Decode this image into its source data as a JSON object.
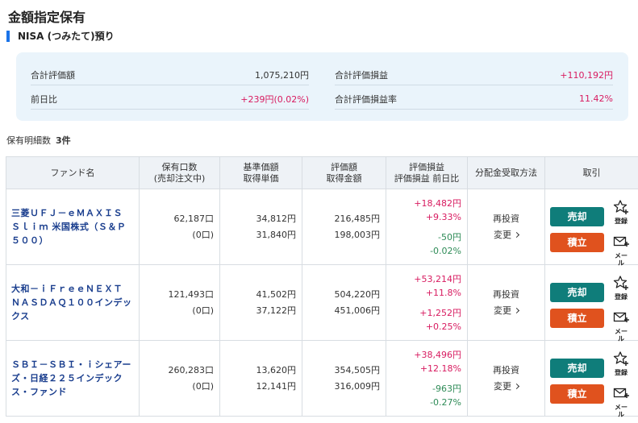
{
  "page": {
    "title": "金額指定保有",
    "section": "NISA (つみたて)預り"
  },
  "summary": {
    "total_value_label": "合計評価額",
    "total_value": "1,075,210円",
    "total_pl_label": "合計評価損益",
    "total_pl": "+110,192円",
    "day_change_label": "前日比",
    "day_change": "+239円(0.02%)",
    "total_pl_rate_label": "合計評価損益率",
    "total_pl_rate": "11.42%"
  },
  "count": {
    "label": "保有明細数",
    "value": "3件"
  },
  "table": {
    "headers": {
      "fund": "ファンド名",
      "units_1": "保有口数",
      "units_2": "(売却注文中)",
      "price_1": "基準価額",
      "price_2": "取得単価",
      "value_1": "評価額",
      "value_2": "取得金額",
      "pl_1": "評価損益",
      "pl_2": "評価損益 前日比",
      "dist": "分配金受取方法",
      "trade": "取引"
    },
    "rows": [
      {
        "name": "三菱ＵＦＪ－ｅＭＡＸＩＳ Ｓｌｉｍ 米国株式（Ｓ＆Ｐ５００）",
        "units": "62,187口",
        "units_pending": "(0口)",
        "nav": "34,812円",
        "cost_price": "31,840円",
        "value": "216,485円",
        "cost": "198,003円",
        "pl": "+18,482円",
        "pl_rate": "+9.33%",
        "day_pl": "-50円",
        "day_rate": "-0.02%",
        "dist": "再投資",
        "change": "変更",
        "sell": "売却",
        "buy": "積立",
        "fav": "登録",
        "mail": "メール"
      },
      {
        "name": "大和－ｉＦｒｅｅＮＥＸＴ ＮＡＳＤＡＱ１００インデックス",
        "units": "121,493口",
        "units_pending": "(0口)",
        "nav": "41,502円",
        "cost_price": "37,122円",
        "value": "504,220円",
        "cost": "451,006円",
        "pl": "+53,214円",
        "pl_rate": "+11.8%",
        "day_pl": "+1,252円",
        "day_rate": "+0.25%",
        "dist": "再投資",
        "change": "変更",
        "sell": "売却",
        "buy": "積立",
        "fav": "登録",
        "mail": "メール"
      },
      {
        "name": "ＳＢＩ－ＳＢＩ・ｉシェアーズ・日経２２５インデックス・ファンド",
        "units": "260,283口",
        "units_pending": "(0口)",
        "nav": "13,620円",
        "cost_price": "12,141円",
        "value": "354,505円",
        "cost": "316,009円",
        "pl": "+38,496円",
        "pl_rate": "+12.18%",
        "day_pl": "-963円",
        "day_rate": "-0.27%",
        "dist": "再投資",
        "change": "変更",
        "sell": "売却",
        "buy": "積立",
        "fav": "登録",
        "mail": "メール"
      }
    ]
  },
  "colors": {
    "positive": "#d81b60",
    "negative": "#2e8b57",
    "sell": "#0f7d7a",
    "buy": "#e0521e",
    "accent": "#1a73e8"
  },
  "icons": {
    "favorite": "star-plus-icon",
    "mail": "mail-plus-icon",
    "change": "chevron-right-icon"
  }
}
